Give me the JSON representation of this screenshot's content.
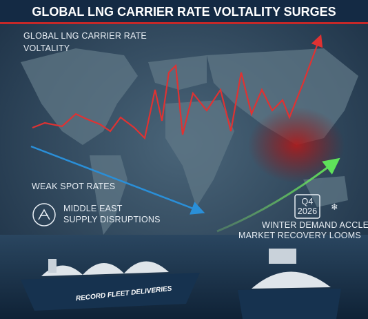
{
  "header": {
    "title": "GLOBAL LNG CARRIER RATE VOLTALITY SURGES"
  },
  "volatility_label": {
    "lines": [
      "GLOBAL LNG CARRIER RATE",
      "VOLTALITY"
    ]
  },
  "weak_label": "WEAK SPOT RATES",
  "disruption_label": {
    "lines": [
      "MIDDLE EAST",
      "SUPPLY DISRUPTIONS"
    ]
  },
  "calendar": {
    "lines": [
      "Q4",
      "2026"
    ]
  },
  "winter_label": "WINTER DEMAND ACCLERATES",
  "recovery_label": "MARKET RECOVERY LOOMS",
  "ship_label": "RECORD FLEET DELIVERIES"
}
